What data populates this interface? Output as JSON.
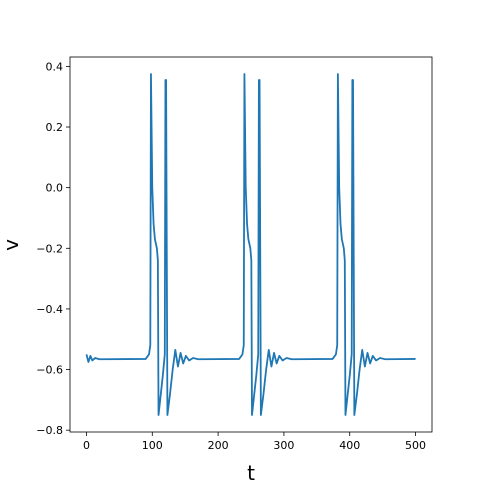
{
  "chart_data": {
    "type": "line",
    "xlabel": "t",
    "ylabel": "v",
    "x": [
      0,
      3,
      6,
      9,
      13,
      20,
      90,
      95,
      97,
      98,
      100,
      102,
      104,
      107,
      108.5,
      109.5,
      112,
      116,
      119,
      120,
      121,
      123,
      127,
      131,
      135,
      139,
      143,
      147,
      151,
      156,
      162,
      170,
      232,
      237,
      239,
      240,
      242,
      244,
      246,
      249,
      250.5,
      251.5,
      254,
      258,
      261,
      262,
      263,
      265,
      269,
      273,
      277,
      281,
      285,
      289,
      293,
      298,
      304,
      312,
      374,
      379,
      381,
      382,
      384,
      386,
      388,
      391,
      392.5,
      393.5,
      396,
      400,
      403,
      404,
      405,
      407,
      411,
      415,
      419,
      423,
      427,
      431,
      435,
      440,
      446,
      454,
      500
    ],
    "series": [
      {
        "color": "#1f77b4",
        "values": [
          -0.55,
          -0.575,
          -0.555,
          -0.57,
          -0.562,
          -0.566,
          -0.565,
          -0.55,
          -0.52,
          0.375,
          0.0,
          -0.12,
          -0.17,
          -0.2,
          -0.24,
          -0.75,
          -0.7,
          -0.62,
          -0.55,
          0.355,
          0.355,
          -0.75,
          -0.68,
          -0.6,
          -0.535,
          -0.59,
          -0.545,
          -0.58,
          -0.555,
          -0.57,
          -0.562,
          -0.566,
          -0.565,
          -0.55,
          -0.52,
          0.375,
          0.0,
          -0.12,
          -0.17,
          -0.2,
          -0.24,
          -0.75,
          -0.7,
          -0.62,
          -0.55,
          0.355,
          0.355,
          -0.75,
          -0.68,
          -0.6,
          -0.535,
          -0.59,
          -0.545,
          -0.58,
          -0.555,
          -0.57,
          -0.562,
          -0.566,
          -0.565,
          -0.55,
          -0.52,
          0.375,
          0.0,
          -0.12,
          -0.17,
          -0.2,
          -0.24,
          -0.75,
          -0.7,
          -0.62,
          -0.55,
          0.355,
          0.355,
          -0.75,
          -0.68,
          -0.6,
          -0.535,
          -0.59,
          -0.545,
          -0.58,
          -0.555,
          -0.57,
          -0.562,
          -0.566,
          -0.565
        ]
      }
    ],
    "xlim": [
      -25,
      525
    ],
    "xticks": [
      0,
      100,
      200,
      300,
      400,
      500
    ],
    "ylim": [
      -0.806,
      0.431
    ],
    "yticks": [
      {
        "value": -0.8,
        "label": "−0.8"
      },
      {
        "value": -0.6,
        "label": "−0.6"
      },
      {
        "value": -0.4,
        "label": "−0.4"
      },
      {
        "value": -0.2,
        "label": "−0.2"
      },
      {
        "value": 0,
        "label": "0.0"
      },
      0.2,
      0.4
    ],
    "grid": false
  }
}
